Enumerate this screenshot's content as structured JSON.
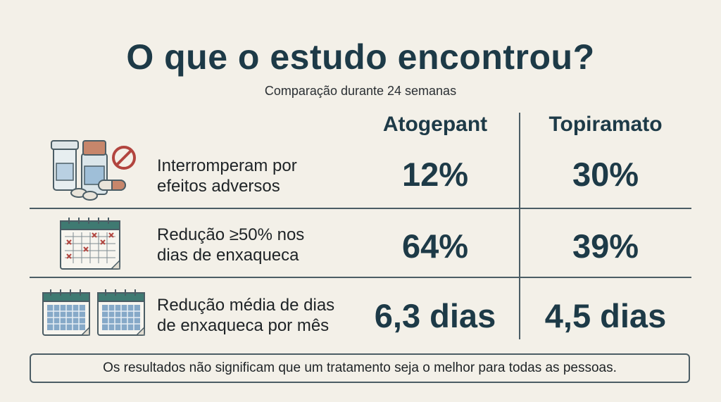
{
  "title": "O que o estudo encontrou?",
  "subtitle": "Comparação durante 24 semanas",
  "columns": [
    "Atogepant",
    "Topiramato"
  ],
  "rows": [
    {
      "label_line1": "Interromperam por",
      "label_line2": "efeitos adversos",
      "icon": "medication-bottles-prohibited-icon",
      "atogepant": "12%",
      "topiramato": "30%"
    },
    {
      "label_line1": "Redução ≥50% nos",
      "label_line2": "dias de enxaqueca",
      "icon": "calendar-marked-days-icon",
      "atogepant": "64%",
      "topiramato": "39%"
    },
    {
      "label_line1": "Redução média de dias",
      "label_line2": "de enxaqueca por mês",
      "icon": "two-calendars-icon",
      "atogepant": "6,3 dias",
      "topiramato": "4,5 dias"
    }
  ],
  "footer": "Os resultados não significam que um tratamento seja o melhor para todas as pessoas.",
  "colors": {
    "heading": "#1d3a47",
    "background": "#f3f0e8",
    "rule": "#4b5d65",
    "calendar_header": "#3f7a72",
    "calendar_cell": "#86a9c8",
    "mark": "#b2453f"
  }
}
